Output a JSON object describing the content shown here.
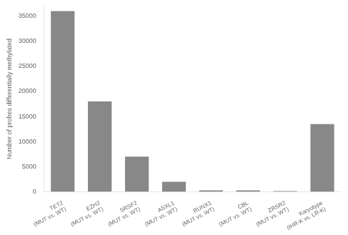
{
  "chart_data": {
    "type": "bar",
    "categories": [
      [
        "TET2",
        "(MUT vs. WT)"
      ],
      [
        "EZH2",
        "(MUT vs. WT)"
      ],
      [
        "SRSF2",
        "(MUT vs. WT)"
      ],
      [
        "ASXL1",
        "(MUT vs. WT)"
      ],
      [
        "RUNX1",
        "(MUT vs. WT)"
      ],
      [
        "CBL",
        "(MUT vs. WT)"
      ],
      [
        "ZRSR2",
        "(MUT vs. WT)"
      ],
      [
        "Karyotype",
        "(IHR-K vs. LR-K)"
      ]
    ],
    "values": [
      36000,
      18000,
      7000,
      2000,
      300,
      300,
      150,
      13500
    ],
    "color": "#888888",
    "ylabel": "Number of probes differentially methylated",
    "ylim": [
      0,
      37000
    ],
    "yticks": [
      0,
      5000,
      10000,
      15000,
      20000,
      25000,
      30000,
      35000
    ],
    "grid": false
  }
}
